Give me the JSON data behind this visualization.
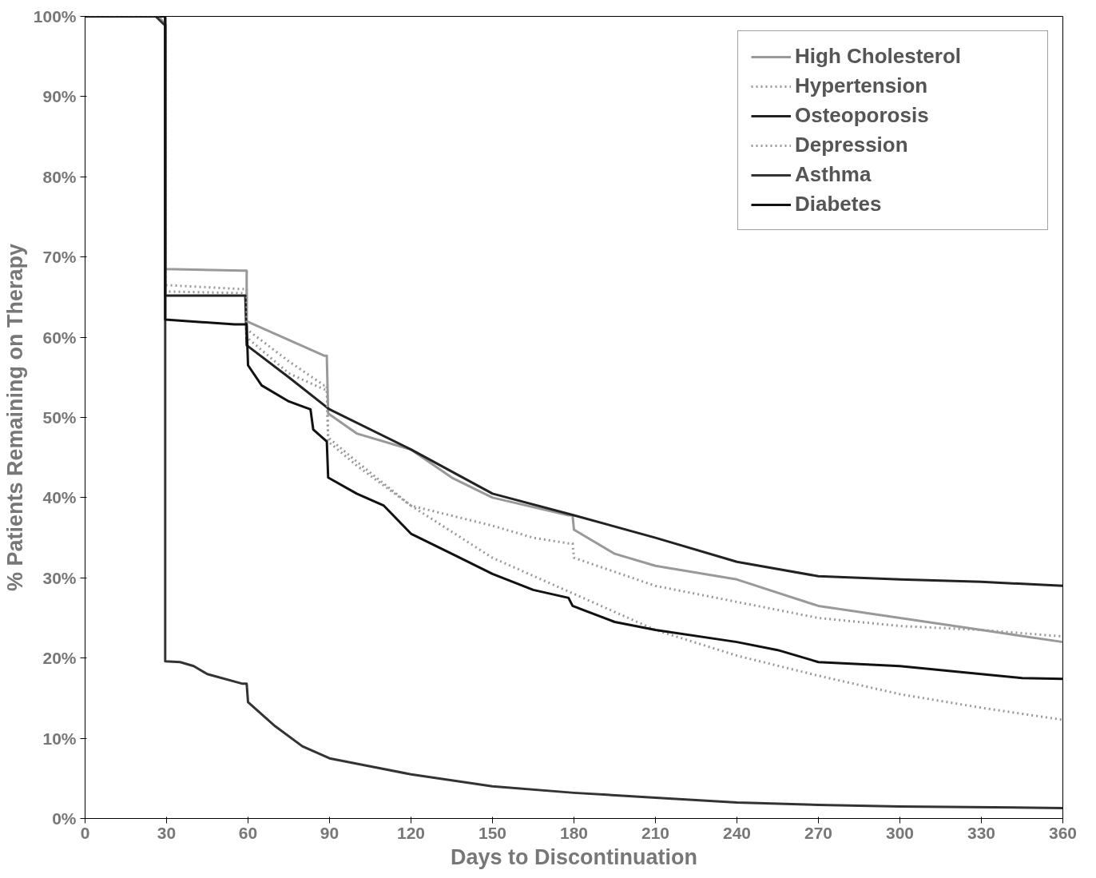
{
  "chart_data": {
    "type": "line",
    "xlabel": "Days to Discontinuation",
    "ylabel": "% Patients Remaining on Therapy",
    "xlim": [
      0,
      360
    ],
    "ylim": [
      0,
      100
    ],
    "xticks": [
      0,
      30,
      60,
      90,
      120,
      150,
      180,
      210,
      240,
      270,
      300,
      330,
      360
    ],
    "yticks": [
      {
        "value": 0,
        "label": "0%"
      },
      {
        "value": 10,
        "label": "10%"
      },
      {
        "value": 20,
        "label": "20%"
      },
      {
        "value": 30,
        "label": "30%"
      },
      {
        "value": 40,
        "label": "40%"
      },
      {
        "value": 50,
        "label": "50%"
      },
      {
        "value": 60,
        "label": "60%"
      },
      {
        "value": 70,
        "label": "70%"
      },
      {
        "value": 80,
        "label": "80%"
      },
      {
        "value": 90,
        "label": "90%"
      },
      {
        "value": 100,
        "label": "100%"
      }
    ],
    "grid": false,
    "legend": "top right",
    "marker": "none",
    "series": [
      {
        "name": "High Cholesterol",
        "color": "#999999",
        "line_style": "solid",
        "x": [
          0,
          27,
          29.5,
          29.5,
          58,
          59.5,
          59.5,
          88,
          89,
          89.5,
          100,
          120,
          135,
          150,
          178,
          179.5,
          180,
          195,
          210,
          240,
          270,
          300,
          330,
          360
        ],
        "values": [
          100,
          100,
          99,
          68.5,
          68.3,
          68.3,
          62,
          57.7,
          57.7,
          50.5,
          48,
          46,
          42.5,
          40,
          37.8,
          37.8,
          36,
          33,
          31.5,
          29.8,
          26.5,
          25,
          23.5,
          22
        ]
      },
      {
        "name": "Hypertension",
        "color": "#999999",
        "line_style": "dotted",
        "x": [
          0,
          27,
          29.5,
          29.5,
          58,
          59.5,
          59.5,
          75,
          88,
          89,
          89.5,
          100,
          120,
          150,
          165,
          178,
          179.5,
          180,
          210,
          240,
          270,
          300,
          330,
          360
        ],
        "values": [
          100,
          100,
          99,
          66.5,
          66,
          66,
          61,
          57,
          54,
          54,
          47,
          44,
          39,
          36.5,
          35,
          34.3,
          34.3,
          32.5,
          29,
          27,
          25,
          24,
          23.5,
          22.7
        ]
      },
      {
        "name": "Osteoporosis",
        "color": "#222222",
        "line_style": "solid",
        "x": [
          0,
          29,
          29.5,
          29.5,
          59,
          59.5,
          75,
          90,
          120,
          150,
          180,
          210,
          240,
          270,
          300,
          330,
          360
        ],
        "values": [
          100,
          100,
          100,
          65.2,
          65.2,
          59,
          55,
          51,
          46,
          40.5,
          37.8,
          35,
          32,
          30.2,
          29.8,
          29.5,
          29
        ]
      },
      {
        "name": "Depression",
        "color": "#999999",
        "line_style": "dotted",
        "x": [
          0,
          27,
          29.5,
          29.5,
          58,
          59.5,
          59.5,
          75,
          88,
          89,
          89.5,
          100,
          120,
          150,
          180,
          210,
          240,
          270,
          300,
          330,
          360
        ],
        "values": [
          100,
          100,
          99,
          65.7,
          65.5,
          65.5,
          60,
          55.5,
          53.5,
          53.5,
          47.5,
          44.5,
          39,
          32.5,
          28,
          23.5,
          20.3,
          17.8,
          15.5,
          13.8,
          12.3
        ]
      },
      {
        "name": "Asthma",
        "color": "#333333",
        "line_style": "solid",
        "x": [
          0,
          26,
          29,
          29.5,
          29.5,
          35,
          40,
          45,
          58,
          59.5,
          60,
          70,
          80,
          90,
          105,
          120,
          150,
          180,
          210,
          240,
          270,
          300,
          360
        ],
        "values": [
          100,
          100,
          99,
          99,
          19.6,
          19.5,
          19,
          18,
          16.8,
          16.8,
          14.5,
          11.5,
          9,
          7.5,
          6.5,
          5.5,
          4,
          3.2,
          2.6,
          2,
          1.7,
          1.5,
          1.3
        ]
      },
      {
        "name": "Diabetes",
        "color": "#111111",
        "line_style": "solid",
        "x": [
          0,
          29,
          29.5,
          29.5,
          55,
          58,
          59.5,
          60,
          65,
          75,
          83,
          84,
          89,
          89.5,
          100,
          110,
          120,
          135,
          150,
          165,
          178,
          179.5,
          195,
          210,
          240,
          255,
          270,
          300,
          330,
          345,
          360
        ],
        "values": [
          100,
          100,
          100,
          62.2,
          61.6,
          61.6,
          61.6,
          56.5,
          54,
          52,
          51,
          48.5,
          47,
          42.5,
          40.5,
          39,
          35.5,
          33,
          30.5,
          28.5,
          27.5,
          26.5,
          24.5,
          23.5,
          22,
          21,
          19.5,
          19,
          18,
          17.5,
          17.4
        ]
      }
    ]
  }
}
